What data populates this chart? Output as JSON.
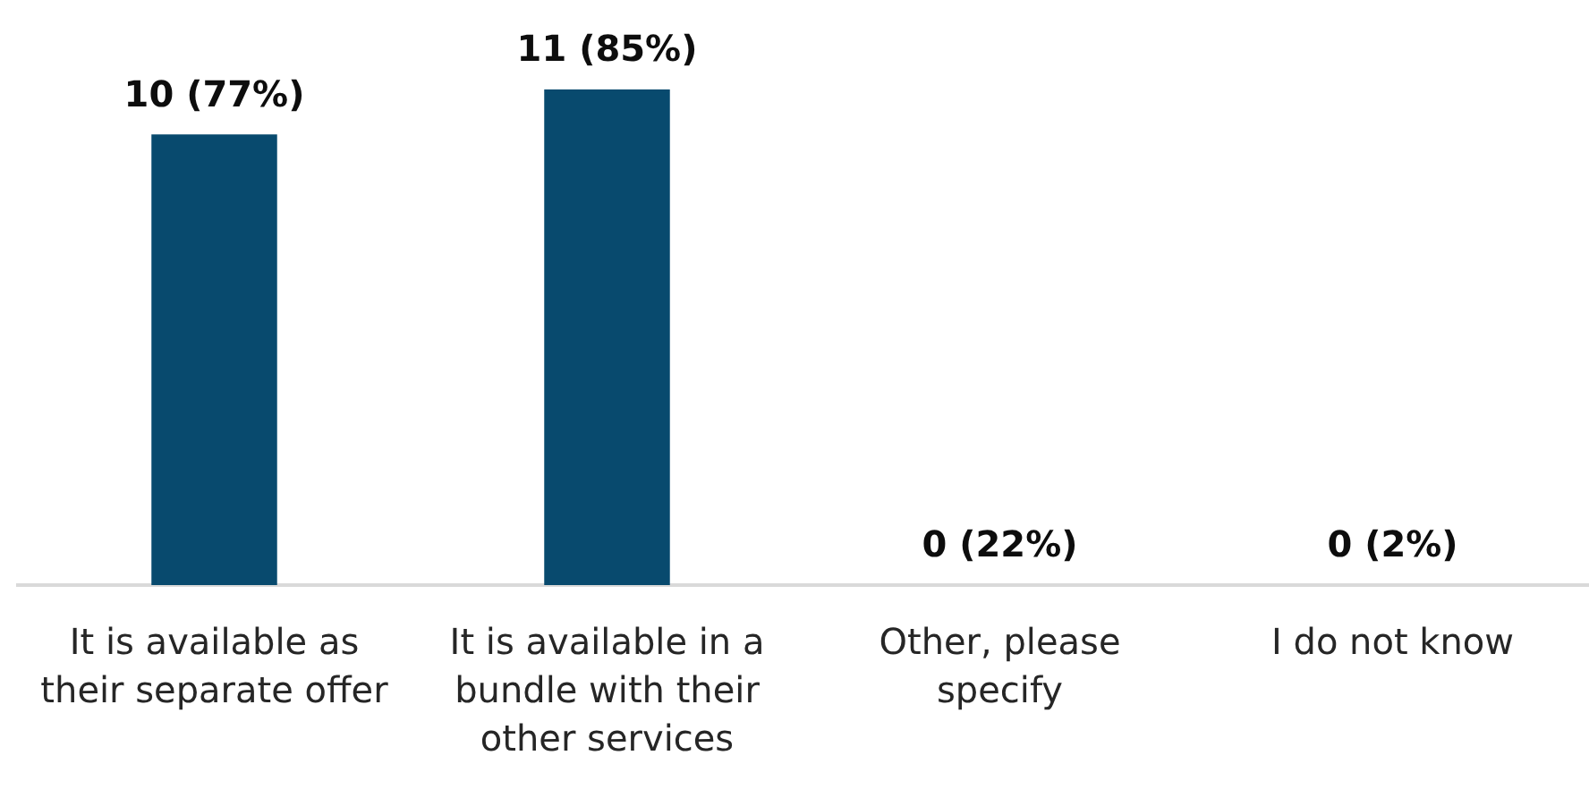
{
  "chart_data": {
    "type": "bar",
    "categories": [
      "It is available as their separate offer",
      "It is available in a bundle with their other services",
      "Other, please specify",
      "I do not know"
    ],
    "values": [
      10,
      11,
      0,
      0
    ],
    "value_labels": [
      "10 (77%)",
      "11 (85%)",
      "0 (22%)",
      "0 (2%)"
    ],
    "color": "#084a6e"
  }
}
